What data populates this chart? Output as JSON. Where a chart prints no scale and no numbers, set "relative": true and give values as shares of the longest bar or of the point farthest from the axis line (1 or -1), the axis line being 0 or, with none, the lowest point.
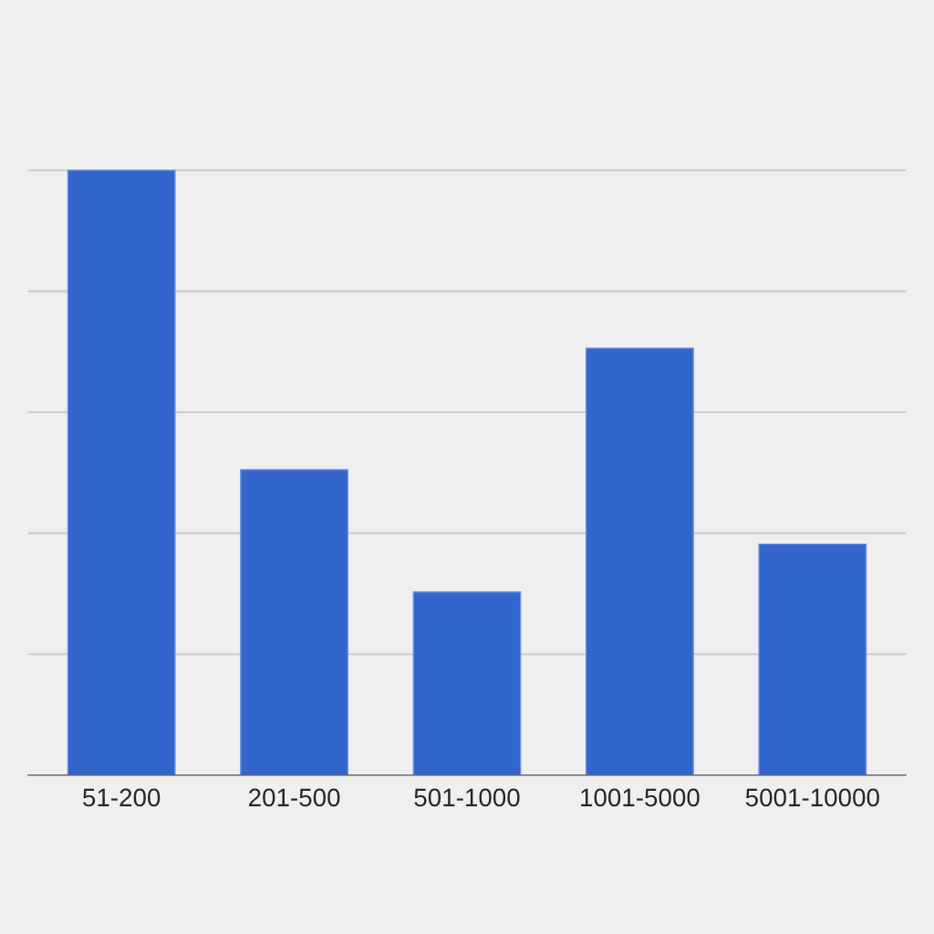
{
  "chart_data": {
    "type": "bar",
    "relative": true,
    "categories": [
      "51-200",
      "201-500",
      "501-1000",
      "1001-5000",
      "5001-10000"
    ],
    "values": [
      1,
      0.505,
      0.303,
      0.706,
      0.382
    ],
    "color": "#3366cc",
    "grid": "y"
  }
}
